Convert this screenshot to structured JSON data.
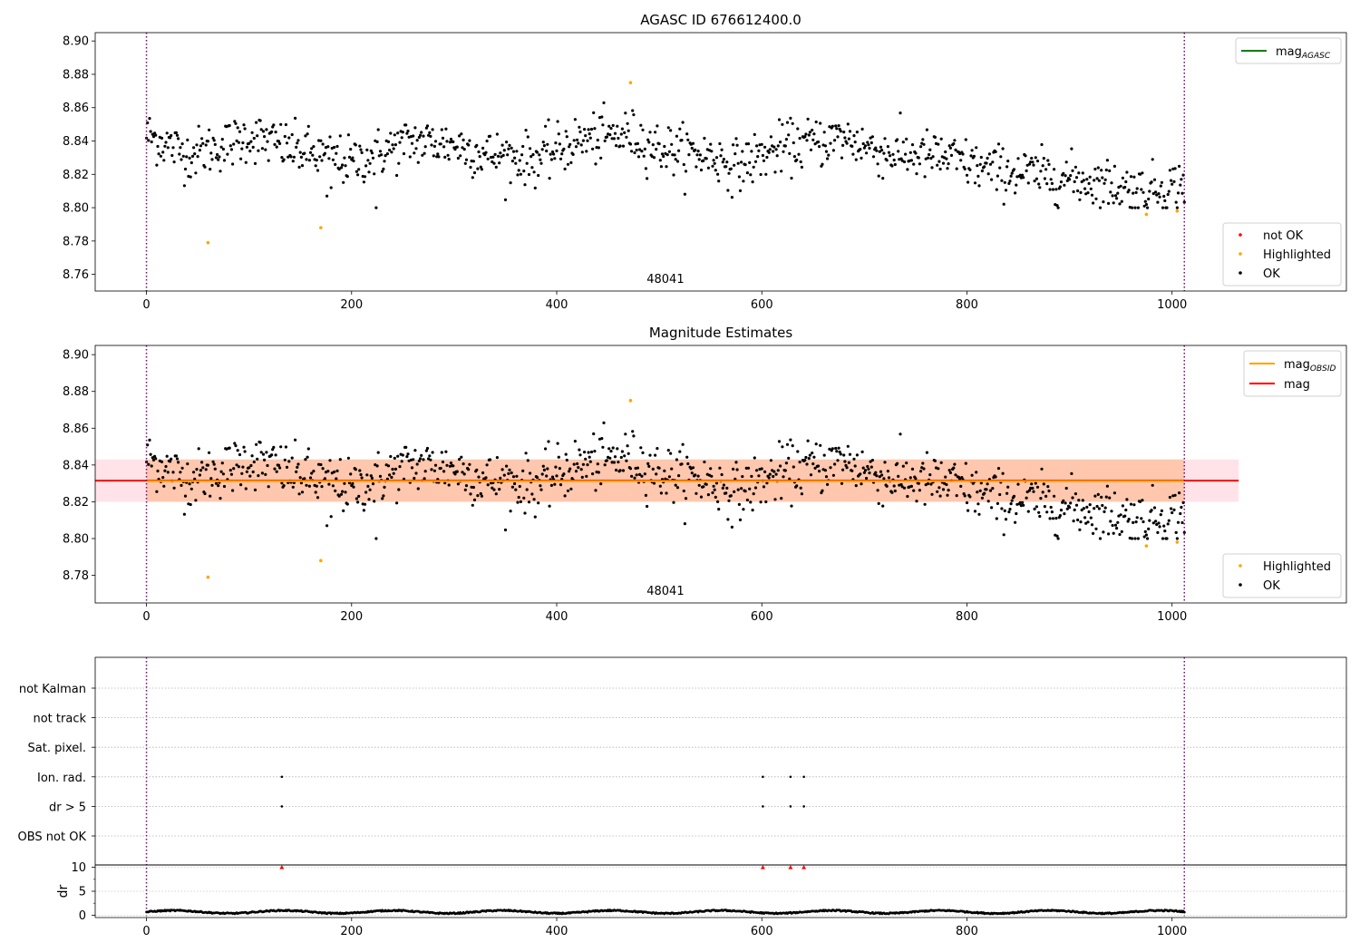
{
  "figure": {
    "title": "AGASC ID 676612400.0",
    "agasc_mag": 8.831,
    "colors": {
      "ok": "#000000",
      "highlighted": "#ffa500",
      "not_ok": "#ff0000",
      "agasc_line": "#008000",
      "obsid_mag": "#ffa500",
      "mag": "#ff0000",
      "obs_boundary": "#800080"
    }
  },
  "chart_data": [
    {
      "type": "scatter",
      "title": "",
      "xlim": [
        -50,
        1170
      ],
      "ylim": [
        8.75,
        8.905
      ],
      "xticks": [
        0,
        200,
        400,
        600,
        800,
        1000
      ],
      "yticks": [
        8.76,
        8.78,
        8.8,
        8.82,
        8.84,
        8.86,
        8.88,
        8.9
      ],
      "obs_boundaries": [
        0,
        1012
      ],
      "obsid_label": "48041",
      "highlighted_points": [
        [
          60,
          8.779
        ],
        [
          170,
          8.788
        ],
        [
          472,
          8.875
        ],
        [
          975,
          8.796
        ],
        [
          1005,
          8.798
        ]
      ],
      "legend_lines": [
        {
          "label": "mag",
          "sub": "AGASC",
          "color": "#008000"
        }
      ],
      "legend_points": [
        {
          "label": "not OK",
          "color": "#ff0000"
        },
        {
          "label": "Highlighted",
          "color": "#ffa500"
        },
        {
          "label": "OK",
          "color": "#000000"
        }
      ]
    },
    {
      "type": "scatter",
      "title": "Magnitude Estimates",
      "xlim": [
        -50,
        1170
      ],
      "ylim": [
        8.765,
        8.905
      ],
      "xticks": [
        0,
        200,
        400,
        600,
        800,
        1000
      ],
      "yticks": [
        8.78,
        8.8,
        8.82,
        8.84,
        8.86,
        8.88,
        8.9
      ],
      "obs_boundaries": [
        0,
        1012
      ],
      "obsid_label": "48041",
      "mag": 8.8315,
      "mag_band": [
        8.82,
        8.843
      ],
      "mag_band_x": [
        -50,
        1065
      ],
      "obsid_mag": 8.8312,
      "obsid_band": [
        8.82,
        8.843
      ],
      "obsid_band_x": [
        0,
        1012
      ],
      "highlighted_points": [
        [
          60,
          8.779
        ],
        [
          170,
          8.788
        ],
        [
          472,
          8.875
        ],
        [
          975,
          8.796
        ],
        [
          1005,
          8.798
        ]
      ],
      "legend_lines": [
        {
          "label": "mag",
          "sub": "OBSID",
          "color": "#ffa500"
        },
        {
          "label": "mag",
          "sub": "",
          "color": "#ff0000"
        }
      ],
      "legend_points": [
        {
          "label": "Highlighted",
          "color": "#ffa500"
        },
        {
          "label": "OK",
          "color": "#000000"
        }
      ]
    },
    {
      "type": "scatter",
      "title": "",
      "xlim": [
        -50,
        1170
      ],
      "xticks": [
        0,
        200,
        400,
        600,
        800,
        1000
      ],
      "obs_boundaries": [
        0,
        1012
      ],
      "flag_rows": [
        "not Kalman",
        "not track",
        "Sat. pixel.",
        "Ion. rad.",
        "dr > 5",
        "OBS not OK"
      ],
      "flag_points": {
        "Ion. rad.": [
          132,
          601,
          628,
          641
        ],
        "dr > 5": [
          132,
          601,
          628,
          641
        ]
      }
    },
    {
      "type": "scatter",
      "title": "",
      "xlim": [
        -50,
        1170
      ],
      "ylim": [
        -0.5,
        10.5
      ],
      "yticks": [
        0,
        5,
        10
      ],
      "ylabel": "dr",
      "clipped_points": [
        132,
        601,
        628,
        641
      ],
      "clip_value": 10
    }
  ]
}
